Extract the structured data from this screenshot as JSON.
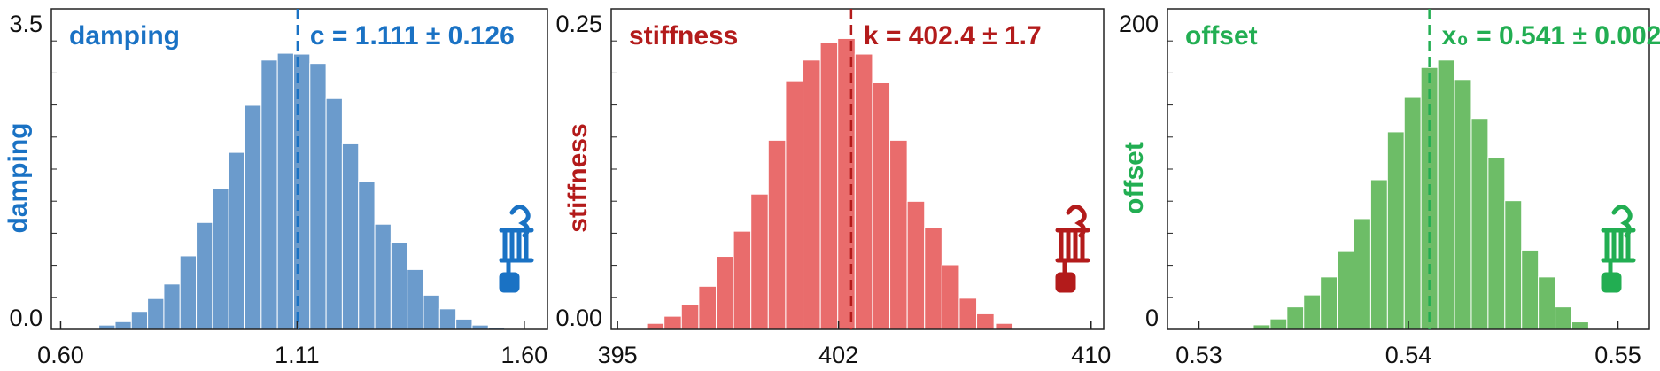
{
  "chart_data": [
    {
      "type": "bar",
      "title": "damping",
      "estimate_label": "c = 1.111 ± 0.126",
      "ylabel": "damping",
      "xlim": [
        0.58,
        1.65
      ],
      "ylim": [
        0,
        3.5
      ],
      "x_ticks": [
        0.6,
        1.11,
        1.6
      ],
      "x_tick_labels": [
        "0.60",
        "1.11",
        "1.60"
      ],
      "y_ticks": [
        0.0,
        3.5
      ],
      "y_tick_labels": [
        "0.0",
        "3.5"
      ],
      "mean": 1.111,
      "bin_width": 0.035,
      "x": [
        0.7,
        0.735,
        0.77,
        0.805,
        0.84,
        0.875,
        0.91,
        0.945,
        0.98,
        1.015,
        1.05,
        1.085,
        1.12,
        1.155,
        1.19,
        1.225,
        1.26,
        1.295,
        1.33,
        1.365,
        1.4,
        1.435,
        1.47,
        1.505,
        1.54
      ],
      "values": [
        0.05,
        0.09,
        0.21,
        0.36,
        0.53,
        0.86,
        1.25,
        1.65,
        2.07,
        2.62,
        3.15,
        3.23,
        3.22,
        3.11,
        2.7,
        2.17,
        1.73,
        1.23,
        1.02,
        0.7,
        0.4,
        0.24,
        0.12,
        0.05,
        0.02
      ],
      "color": "#6b9bcc",
      "accent": "#1a72c4",
      "icon": "spring-mass-icon"
    },
    {
      "type": "bar",
      "title": "stiffness",
      "estimate_label": "k = 402.4 ± 1.7",
      "ylabel": "stiffness",
      "xlim": [
        394.8,
        410.4
      ],
      "ylim": [
        0,
        0.25
      ],
      "x_ticks": [
        395,
        402,
        410
      ],
      "x_tick_labels": [
        "395",
        "402",
        "410"
      ],
      "y_ticks": [
        0.0,
        0.25
      ],
      "y_tick_labels": [
        "0.00",
        "0.25"
      ],
      "mean": 402.4,
      "bin_width": 0.55,
      "x": [
        396.2,
        396.75,
        397.3,
        397.85,
        398.4,
        398.95,
        399.5,
        400.05,
        400.6,
        401.15,
        401.7,
        402.25,
        402.8,
        403.35,
        403.9,
        404.45,
        405.0,
        405.55,
        406.1,
        406.65,
        407.25
      ],
      "values": [
        0.005,
        0.011,
        0.021,
        0.036,
        0.061,
        0.082,
        0.113,
        0.158,
        0.207,
        0.225,
        0.24,
        0.243,
        0.23,
        0.206,
        0.158,
        0.107,
        0.085,
        0.054,
        0.026,
        0.013,
        0.005
      ],
      "color": "#e96c6c",
      "accent": "#b31b1b",
      "icon": "spring-mass-icon"
    },
    {
      "type": "bar",
      "title": "offset",
      "estimate_label": "x₀ = 0.541 ± 0.002",
      "ylabel": "offset",
      "xlim": [
        0.5285,
        0.5515
      ],
      "ylim": [
        0,
        200
      ],
      "x_ticks": [
        0.53,
        0.54,
        0.55
      ],
      "x_tick_labels": [
        "0.53",
        "0.54",
        "0.55"
      ],
      "y_ticks": [
        0,
        200
      ],
      "y_tick_labels": [
        "0",
        "200"
      ],
      "mean": 0.541,
      "bin_width": 0.0008,
      "x": [
        0.533,
        0.5338,
        0.5346,
        0.5354,
        0.5362,
        0.537,
        0.5378,
        0.5386,
        0.5394,
        0.5402,
        0.541,
        0.5418,
        0.5426,
        0.5434,
        0.5442,
        0.545,
        0.5458,
        0.5466,
        0.5474,
        0.5482
      ],
      "values": [
        3,
        7,
        15,
        23,
        35,
        52,
        74,
        100,
        132,
        155,
        175,
        180,
        167,
        141,
        115,
        86,
        53,
        35,
        15,
        5
      ],
      "color": "#6dbd67",
      "accent": "#22ae52",
      "icon": "spring-mass-icon"
    }
  ]
}
